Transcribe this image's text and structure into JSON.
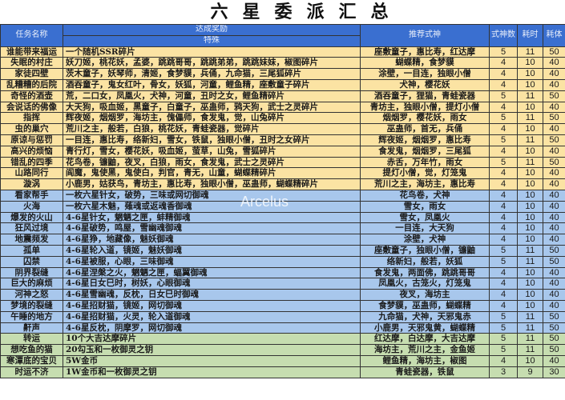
{
  "title": "六星委派汇总",
  "watermark": "Arcelus",
  "headers": {
    "name": "任务名称",
    "reward": "达成奖励",
    "special": "特殊",
    "recommend": "推荐式神",
    "count": "式神数",
    "time": "耗时",
    "stamina": "耗体"
  },
  "colors": {
    "header": "#3a6fd0",
    "yellow": "#fbe3a3",
    "blue": "#a8c7ec",
    "green": "#c6ddb0"
  },
  "rows": [
    {
      "group": "yellow",
      "name": "谁能带来福运",
      "reward": "一个随机SSR碎片",
      "rec": "座敷童子，惠比寿，红达摩",
      "count": "5",
      "time": "11",
      "stamina": "50"
    },
    {
      "group": "yellow",
      "name": "失眠的村庄",
      "reward": "妖刀姬，桃花妖，孟婆，跳跳哥哥，跳跳弟弟，跳跳妹妹，椒图碎片",
      "rec": "蝴蝶精，食梦貘",
      "count": "4",
      "time": "10",
      "stamina": "40"
    },
    {
      "group": "yellow",
      "name": "家徒四壁",
      "reward": "茨木童子，妖琴师，清姬，食梦貘，兵俑，九命猫，三尾狐碎片",
      "rec": "涂壁，一目连，独眼小僧",
      "count": "4",
      "time": "10",
      "stamina": "40"
    },
    {
      "group": "yellow",
      "name": "乱糟糟的后院",
      "reward": "酒吞童子，鬼女红叶，骨女，妖狐，河童，鲤鱼精，座敷童子碎片",
      "rec": "犬神，樱花妖",
      "count": "4",
      "time": "10",
      "stamina": "40"
    },
    {
      "group": "yellow",
      "name": "奇怪的酒壶",
      "reward": "荒，二口女，凤凰火，犬神，河童，丑时之女，鲤鱼精碎片",
      "rec": "酒吞童子，狸猫，青蛙瓷器",
      "count": "5",
      "time": "11",
      "stamina": "50"
    },
    {
      "group": "yellow",
      "name": "会说话的佛像",
      "reward": "大天狗，吸血姬，黑童子，白童子，巫蛊师，鸦天狗，武士之灵碎片",
      "rec": "青坊主，独眼小僧，提灯小僧",
      "count": "4",
      "time": "10",
      "stamina": "40"
    },
    {
      "group": "yellow",
      "name": "指挥",
      "reward": "辉夜姬，烟烟罗，海坊主，傀儡师，食发鬼，觉，山兔碎片",
      "rec": "烟烟罗，樱花妖，雨女",
      "count": "5",
      "time": "11",
      "stamina": "50"
    },
    {
      "group": "yellow",
      "name": "虫的巢穴",
      "reward": "荒川之主，般若，白狼，桃花妖，青蛙瓷器，觉碎片",
      "rec": "巫蛊师，首无，兵俑",
      "count": "4",
      "time": "10",
      "stamina": "40"
    },
    {
      "group": "yellow",
      "name": "原谅与惩罚",
      "reward": "一目连，惠比寿，络新妇，雪女，铁鼠，独眼小僧，丑时之女碎片",
      "rec": "辉夜姬，烟烟罗，惠比寿",
      "count": "5",
      "time": "11",
      "stamina": "50"
    },
    {
      "group": "yellow",
      "name": "高兴的烦恼",
      "reward": "青行灯，雪女，樱花妖，吸血姬，萤草，山兔，雪狐碎片",
      "rec": "食发鬼，烟烟罗，三尾狐",
      "count": "4",
      "time": "10",
      "stamina": "40"
    },
    {
      "group": "yellow",
      "name": "错乱的四季",
      "reward": "花鸟卷，镰鼬，夜叉，白狼，雨女，食发鬼，武士之灵碎片",
      "rec": "赤舌，万年竹，雨女",
      "count": "5",
      "time": "11",
      "stamina": "50"
    },
    {
      "group": "yellow",
      "name": "山路同行",
      "reward": "阎魔，鬼使黑，鬼使白，判官，青无，山童，蝴蝶精碎片",
      "rec": "提灯小僧，觉，灯笼鬼",
      "count": "4",
      "time": "10",
      "stamina": "40"
    },
    {
      "group": "yellow",
      "name": "漩涡",
      "reward": "小鹿男，姑获鸟，青坊主，惠比寿，独眼小僧，巫蛊师，蝴蝶精碎片",
      "rec": "荒川之主，海坊主，惠比寿",
      "count": "4",
      "time": "10",
      "stamina": "40"
    },
    {
      "group": "blue",
      "name": "看家帮手",
      "reward": "一枚六星针女，破势，三味或网切御魂",
      "rec": "花鸟卷，犬神",
      "count": "4",
      "time": "10",
      "stamina": "40"
    },
    {
      "group": "blue",
      "name": "火海",
      "reward": "一枚六星木魅，薙魂或返魂香御魂",
      "rec": "雪女，雨女",
      "count": "4",
      "time": "10",
      "stamina": "40"
    },
    {
      "group": "blue",
      "name": "爆发的火山",
      "reward": "4-6星针女，魍魉之匣，蚌精御魂",
      "rec": "雪女，凤凰火",
      "count": "4",
      "time": "10",
      "stamina": "40"
    },
    {
      "group": "blue",
      "name": "狂风过境",
      "reward": "4-6星破势，鸣屋，雪幽魂御魂",
      "rec": "一目连，大天狗",
      "count": "4",
      "time": "10",
      "stamina": "40"
    },
    {
      "group": "blue",
      "name": "地震频发",
      "reward": "4-6星狰，地藏像，魅妖御魂",
      "rec": "涂壁，犬神",
      "count": "4",
      "time": "10",
      "stamina": "40"
    },
    {
      "group": "blue",
      "name": "孤单",
      "reward": "4-6星轮入道，镜姬，魅妖御魂",
      "rec": "座敷童子，独眼小僧，镰鼬",
      "count": "5",
      "time": "11",
      "stamina": "50"
    },
    {
      "group": "blue",
      "name": "囚禁",
      "reward": "4-6星被服，心眼，三味御魂",
      "rec": "络新妇，般若，妖狐",
      "count": "5",
      "time": "11",
      "stamina": "50"
    },
    {
      "group": "blue",
      "name": "阴界裂缝",
      "reward": "4-6星涅槃之火，魍魉之匣，蝠翼御魂",
      "rec": "食发鬼，两面佛，跳跳哥哥",
      "count": "4",
      "time": "10",
      "stamina": "40"
    },
    {
      "group": "blue",
      "name": "巨大的麻烦",
      "reward": "4-6星日女巳时，树妖，心眼御魂",
      "rec": "凤凰火，古笼火，灯笼鬼",
      "count": "4",
      "time": "10",
      "stamina": "40"
    },
    {
      "group": "blue",
      "name": "河神之怒",
      "reward": "4-6星雪幽魂，反枕，日女巳时御魂",
      "rec": "夜叉，海坊主",
      "count": "4",
      "time": "10",
      "stamina": "40"
    },
    {
      "group": "blue",
      "name": "梦境的裂缝",
      "reward": "4-6星招财猫，镜姬，网切御魂",
      "rec": "食梦貘，巫蛊师，蝴蝶精",
      "count": "4",
      "time": "10",
      "stamina": "40"
    },
    {
      "group": "blue",
      "name": "午睡的地方",
      "reward": "4-6星招财猫，火灵，轮入道御魂",
      "rec": "九命猫，犬神，天邪鬼赤",
      "count": "5",
      "time": "11",
      "stamina": "50"
    },
    {
      "group": "blue",
      "name": "鼾声",
      "reward": "4-6星反枕，阴摩罗，网切御魂",
      "rec": "小鹿男，天邪鬼黄，蝴蝶精",
      "count": "5",
      "time": "11",
      "stamina": "50"
    },
    {
      "group": "green",
      "name": "转运",
      "reward": "10个大吉达摩碎片",
      "rec": "红达摩，白达摩，大吉达摩",
      "count": "5",
      "time": "11",
      "stamina": "50"
    },
    {
      "group": "green",
      "name": "想吃鱼的猫",
      "reward": "20勾玉和一枚御灵之钥",
      "rec": "海坊主，荒川之主，金鱼姬",
      "count": "5",
      "time": "11",
      "stamina": "50"
    },
    {
      "group": "green",
      "name": "寒潭底的宝贝",
      "reward": "5W金币",
      "rec": "鲤鱼精，海坊主，椒图",
      "count": "4",
      "time": "10",
      "stamina": "40"
    },
    {
      "group": "green",
      "name": "时运不济",
      "reward": "1W金币和一枚御灵之钥",
      "rec": "青蛙瓷器，铁鼠",
      "count": "3",
      "time": "9",
      "stamina": "30"
    }
  ]
}
